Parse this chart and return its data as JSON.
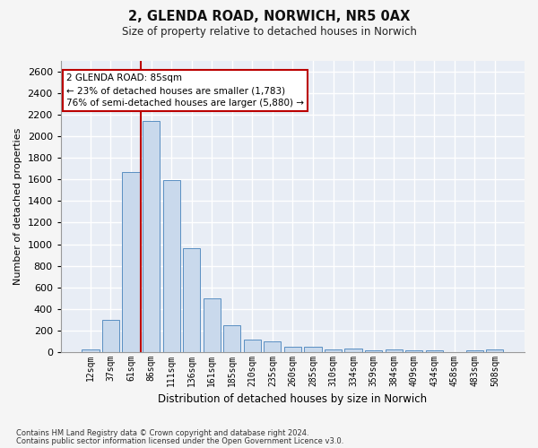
{
  "title_line1": "2, GLENDA ROAD, NORWICH, NR5 0AX",
  "title_line2": "Size of property relative to detached houses in Norwich",
  "xlabel": "Distribution of detached houses by size in Norwich",
  "ylabel": "Number of detached properties",
  "footnote1": "Contains HM Land Registry data © Crown copyright and database right 2024.",
  "footnote2": "Contains public sector information licensed under the Open Government Licence v3.0.",
  "bar_labels": [
    "12sqm",
    "37sqm",
    "61sqm",
    "86sqm",
    "111sqm",
    "136sqm",
    "161sqm",
    "185sqm",
    "210sqm",
    "235sqm",
    "260sqm",
    "285sqm",
    "310sqm",
    "334sqm",
    "359sqm",
    "384sqm",
    "409sqm",
    "434sqm",
    "458sqm",
    "483sqm",
    "508sqm"
  ],
  "bar_values": [
    25,
    300,
    1670,
    2140,
    1590,
    960,
    500,
    250,
    120,
    100,
    50,
    50,
    30,
    35,
    20,
    30,
    20,
    20,
    5,
    20,
    25
  ],
  "bar_color": "#c9d9ec",
  "bar_edge_color": "#5a8fc2",
  "fig_bg_color": "#f5f5f5",
  "ax_bg_color": "#e8edf5",
  "grid_color": "#ffffff",
  "vline_index": 3,
  "vline_color": "#bb0000",
  "annotation_line1": "2 GLENDA ROAD: 85sqm",
  "annotation_line2": "← 23% of detached houses are smaller (1,783)",
  "annotation_line3": "76% of semi-detached houses are larger (5,880) →",
  "annotation_box_facecolor": "#ffffff",
  "annotation_box_edgecolor": "#bb0000",
  "ylim_max": 2700,
  "yticks": [
    0,
    200,
    400,
    600,
    800,
    1000,
    1200,
    1400,
    1600,
    1800,
    2000,
    2200,
    2400,
    2600
  ]
}
